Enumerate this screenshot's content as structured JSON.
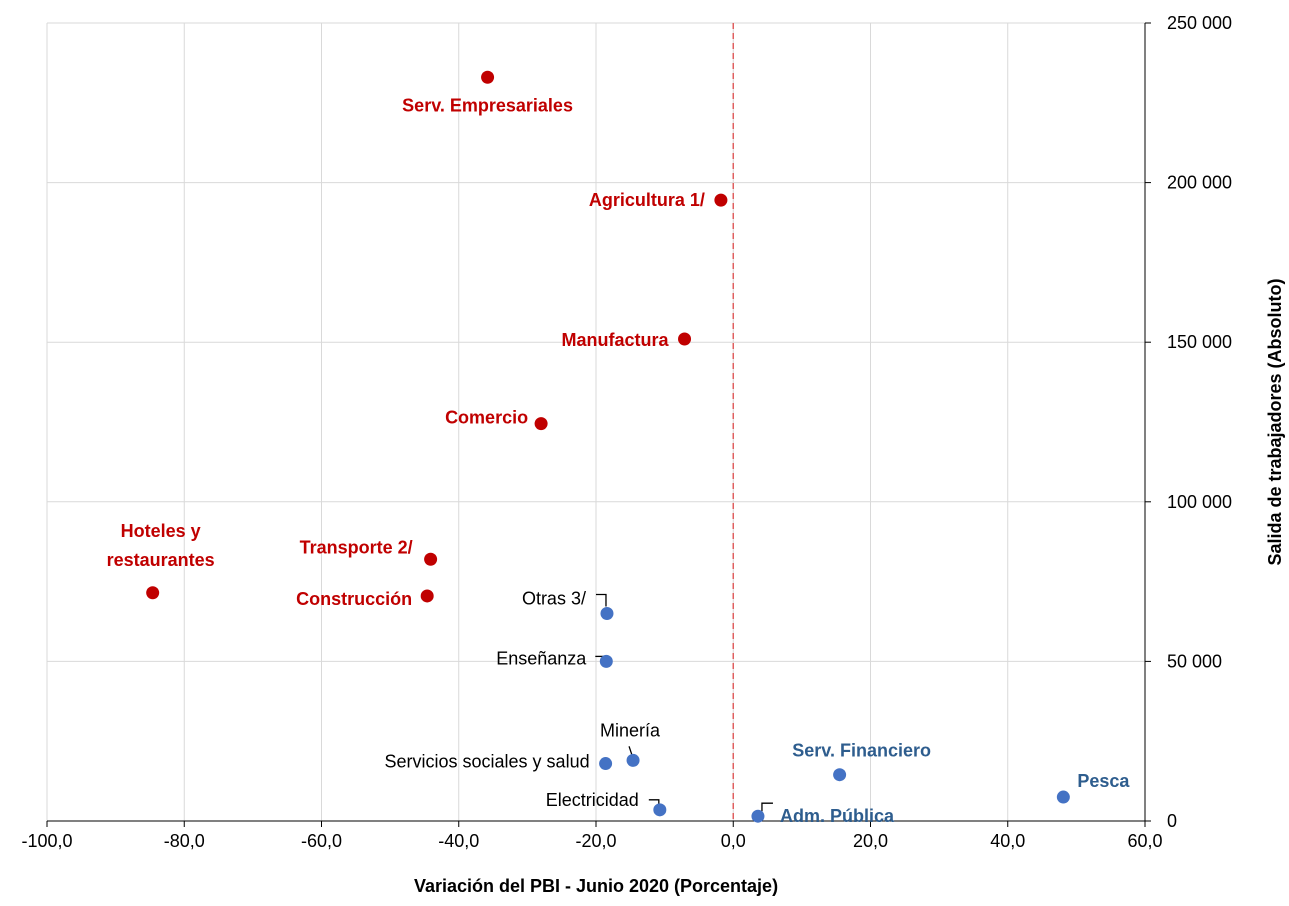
{
  "chart_data": {
    "type": "scatter",
    "title": "",
    "xlabel": "Variación del PBI - Junio 2020 (Porcentaje)",
    "ylabel": "Salida de trabajadores (Absoluto)",
    "xlim": [
      -100,
      60
    ],
    "ylim": [
      0,
      250000
    ],
    "x_ticks": [
      -100,
      -80,
      -60,
      -40,
      -20,
      0,
      20,
      40,
      60
    ],
    "x_tick_labels": [
      "-100,0",
      "-80,0",
      "-60,0",
      "-40,0",
      "-20,0",
      "0,0",
      "20,0",
      "40,0",
      "60,0"
    ],
    "y_ticks": [
      0,
      50000,
      100000,
      150000,
      200000,
      250000
    ],
    "y_tick_labels": [
      "0",
      "50 000",
      "100 000",
      "150 000",
      "200 000",
      "250 000"
    ],
    "y_axis_position": "right",
    "grid": true,
    "reference_line": {
      "x": 0,
      "style": "dashed",
      "color": "#e06060"
    },
    "colors": {
      "red": "#c00000",
      "blue": "#4472c4",
      "blue_label": "#2e5d8e",
      "grid": "#d9d9d9"
    },
    "points": [
      {
        "label": "Serv. Empresariales",
        "x": -35.8,
        "y": 233000,
        "color": "red"
      },
      {
        "label": "Agricultura 1/",
        "x": -1.8,
        "y": 194500,
        "color": "red"
      },
      {
        "label": "Manufactura",
        "x": -7.1,
        "y": 151000,
        "color": "red"
      },
      {
        "label": "Comercio",
        "x": -28.0,
        "y": 124500,
        "color": "red"
      },
      {
        "label": "Transporte 2/",
        "x": -44.1,
        "y": 82000,
        "color": "red"
      },
      {
        "label": "Construcción",
        "x": -44.6,
        "y": 70500,
        "color": "red"
      },
      {
        "label": "Hoteles y restaurantes",
        "label_lines": [
          "Hoteles y",
          "restaurantes"
        ],
        "x": -84.6,
        "y": 71500,
        "color": "red"
      },
      {
        "label": "Otras 3/",
        "x": -18.4,
        "y": 65000,
        "color": "blue"
      },
      {
        "label": "Enseñanza",
        "x": -18.5,
        "y": 50000,
        "color": "blue"
      },
      {
        "label": "Minería",
        "x": -14.6,
        "y": 19000,
        "color": "blue"
      },
      {
        "label": "Servicios sociales y salud",
        "x": -18.6,
        "y": 18000,
        "color": "blue"
      },
      {
        "label": "Electricidad",
        "x": -10.7,
        "y": 3500,
        "color": "blue"
      },
      {
        "label": "Adm. Pública",
        "x": 3.6,
        "y": 1500,
        "color": "blue"
      },
      {
        "label": "Serv. Financiero",
        "x": 15.5,
        "y": 14500,
        "color": "blue"
      },
      {
        "label": "Pesca",
        "x": 48.1,
        "y": 7500,
        "color": "blue"
      }
    ]
  }
}
